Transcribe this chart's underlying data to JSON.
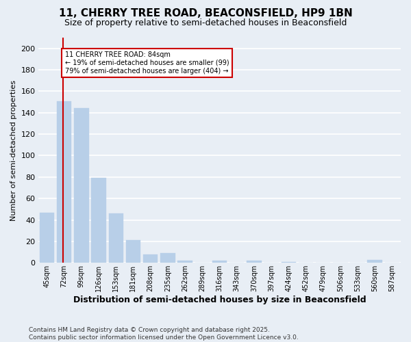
{
  "title": "11, CHERRY TREE ROAD, BEACONSFIELD, HP9 1BN",
  "subtitle": "Size of property relative to semi-detached houses in Beaconsfield",
  "xlabel": "Distribution of semi-detached houses by size in Beaconsfield",
  "ylabel": "Number of semi-detached properties",
  "categories": [
    "45sqm",
    "72sqm",
    "99sqm",
    "126sqm",
    "153sqm",
    "181sqm",
    "208sqm",
    "235sqm",
    "262sqm",
    "289sqm",
    "316sqm",
    "343sqm",
    "370sqm",
    "397sqm",
    "424sqm",
    "452sqm",
    "479sqm",
    "506sqm",
    "533sqm",
    "560sqm",
    "587sqm"
  ],
  "values": [
    47,
    151,
    144,
    79,
    46,
    21,
    8,
    9,
    2,
    0,
    2,
    0,
    2,
    0,
    1,
    0,
    0,
    0,
    0,
    3,
    0
  ],
  "bar_color": "#b8cfe8",
  "bar_edge_color": "#b8cfe8",
  "property_label": "11 CHERRY TREE ROAD: 84sqm",
  "annotation_smaller": "← 19% of semi-detached houses are smaller (99)",
  "annotation_larger": "79% of semi-detached houses are larger (404) →",
  "ylim": [
    0,
    210
  ],
  "yticks": [
    0,
    20,
    40,
    60,
    80,
    100,
    120,
    140,
    160,
    180,
    200
  ],
  "footer": "Contains HM Land Registry data © Crown copyright and database right 2025.\nContains public sector information licensed under the Open Government Licence v3.0.",
  "background_color": "#e8eef5",
  "plot_bg_color": "#e8eef5",
  "grid_color": "#ffffff",
  "annotation_box_color": "#ffffff",
  "annotation_box_edge": "#cc0000",
  "line_color": "#cc0000",
  "title_fontsize": 11,
  "subtitle_fontsize": 9
}
